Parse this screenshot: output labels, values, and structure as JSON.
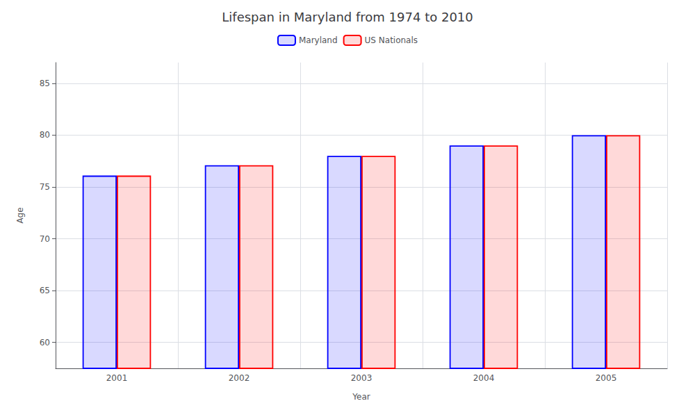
{
  "chart_data": {
    "type": "bar",
    "title": "Lifespan in Maryland from 1974 to 2010",
    "xlabel": "Year",
    "ylabel": "Age",
    "categories": [
      "2001",
      "2002",
      "2003",
      "2004",
      "2005"
    ],
    "series": [
      {
        "name": "Maryland",
        "color": "#0000ff",
        "values": [
          76.1,
          77.1,
          78.0,
          79.0,
          80.0
        ]
      },
      {
        "name": "US Nationals",
        "color": "#ff0000",
        "values": [
          76.1,
          77.1,
          78.0,
          79.0,
          80.0
        ]
      }
    ],
    "ylim": [
      57.5,
      87
    ],
    "yticks": [
      60,
      65,
      70,
      75,
      80,
      85
    ],
    "grid": true,
    "legend": "top"
  }
}
